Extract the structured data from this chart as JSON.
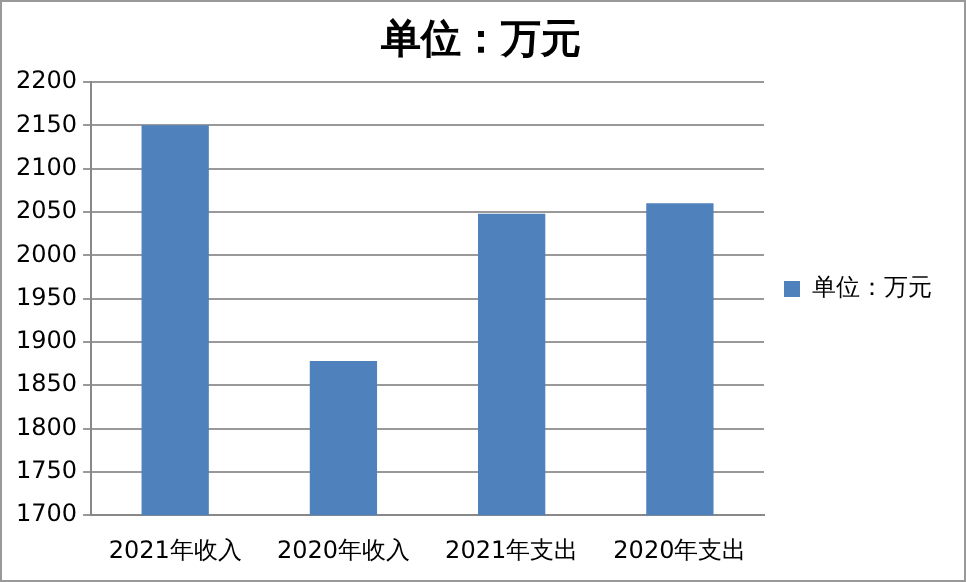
{
  "chart_data": {
    "type": "bar",
    "title": "单位：万元",
    "categories": [
      "2021年收入",
      "2020年收入",
      "2021年支出",
      "2020年支出"
    ],
    "series": [
      {
        "name": "单位：万元",
        "color": "#4f81bd",
        "values": [
          2150,
          1878,
          2048,
          2060
        ]
      }
    ],
    "ylim": [
      1700,
      2200
    ],
    "yticks": [
      1700,
      1750,
      1800,
      1850,
      1900,
      1950,
      2000,
      2050,
      2100,
      2150,
      2200
    ],
    "grid": "y",
    "legend": "right"
  }
}
